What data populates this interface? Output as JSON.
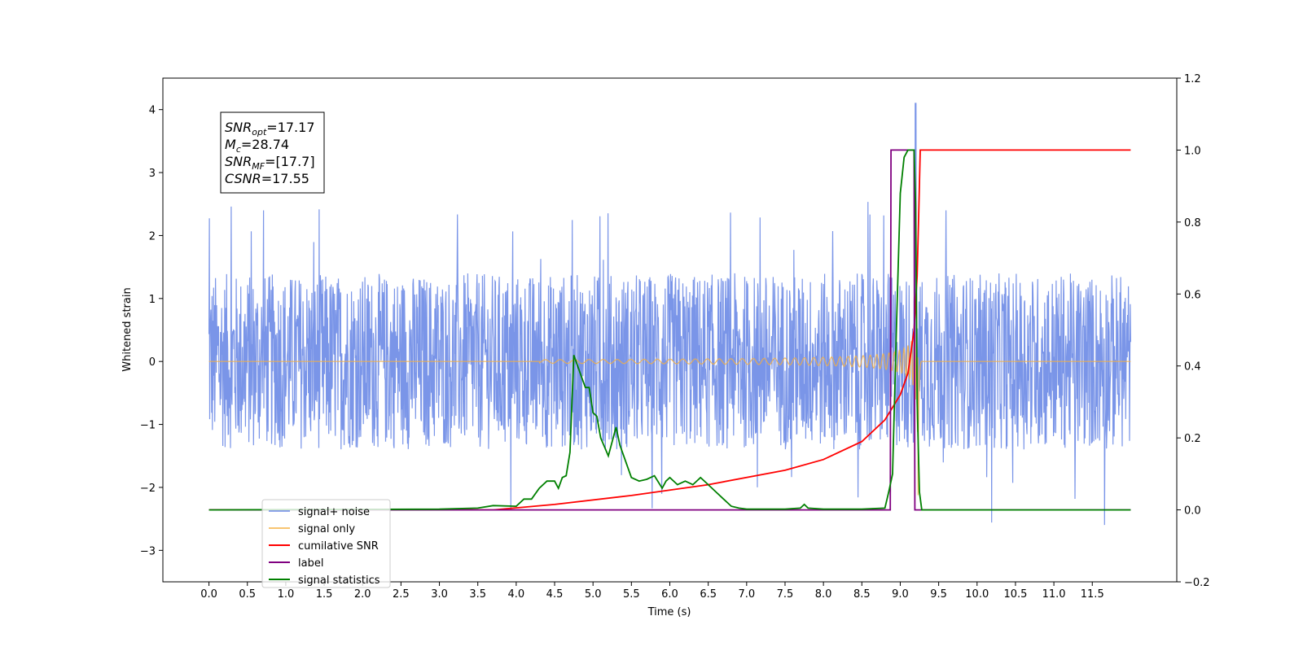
{
  "chart_data": {
    "type": "line",
    "xlabel": "Time (s)",
    "ylabel": "Whitened strain",
    "xlim": [
      -0.6,
      12.6
    ],
    "ylim": [
      -3.5,
      4.5
    ],
    "ylim_right": [
      -0.2,
      1.2
    ],
    "grid": false,
    "legend_position": "lower-left",
    "x_ticks": [
      "0.0",
      "0.5",
      "1.0",
      "1.5",
      "2.0",
      "2.5",
      "3.0",
      "3.5",
      "4.0",
      "4.5",
      "5.0",
      "5.5",
      "6.0",
      "6.5",
      "7.0",
      "7.5",
      "8.0",
      "8.5",
      "9.0",
      "9.5",
      "10.0",
      "10.5",
      "11.0",
      "11.5"
    ],
    "x_tick_values": [
      0,
      0.5,
      1,
      1.5,
      2,
      2.5,
      3,
      3.5,
      4,
      4.5,
      5,
      5.5,
      6,
      6.5,
      7,
      7.5,
      8,
      8.5,
      9,
      9.5,
      10,
      10.5,
      11,
      11.5
    ],
    "y_ticks_left": [
      "−3",
      "−2",
      "−1",
      "0",
      "1",
      "2",
      "3",
      "4"
    ],
    "y_tick_values_left": [
      -3,
      -2,
      -1,
      0,
      1,
      2,
      3,
      4
    ],
    "y_ticks_right": [
      "−0.2",
      "0.0",
      "0.2",
      "0.4",
      "0.6",
      "0.8",
      "1.0",
      "1.2"
    ],
    "y_tick_values_right": [
      -0.2,
      0,
      0.2,
      0.4,
      0.6,
      0.8,
      1.0,
      1.2
    ],
    "annotation": {
      "lines": [
        {
          "main": "SNR",
          "sub": "opt",
          "rest": "=17.17"
        },
        {
          "main": "M",
          "sub": "c",
          "rest": "=28.74"
        },
        {
          "main": "SNR",
          "sub": "MF",
          "rest": "=[17.7]"
        },
        {
          "main": "CSNR",
          "sub": "",
          "rest": "=17.55"
        }
      ]
    },
    "series": [
      {
        "name": "signal+ noise",
        "color": "#6b8ae6",
        "axis": "left",
        "x_range": [
          0,
          12
        ],
        "envelope_abs": 1.4,
        "peak_x": 9.2,
        "peak_y": 4.1
      },
      {
        "name": "signal only",
        "color": "#f5b042",
        "axis": "left",
        "x_range": [
          0,
          12
        ],
        "chirp_start": 4.3,
        "merger_x": 9.23,
        "merger_amp": 1.5
      },
      {
        "name": "cumilative SNR",
        "color": "#ff0000",
        "axis": "right",
        "x": [
          0,
          3.7,
          4.5,
          5.5,
          6.5,
          7.5,
          8.0,
          8.5,
          8.8,
          9.0,
          9.1,
          9.18,
          9.22,
          9.24,
          9.26,
          9.28,
          12
        ],
        "y": [
          0,
          0,
          0.015,
          0.04,
          0.07,
          0.11,
          0.14,
          0.19,
          0.25,
          0.32,
          0.38,
          0.5,
          0.65,
          0.82,
          1.0,
          1.0,
          1.0
        ]
      },
      {
        "name": "label",
        "color": "#800080",
        "axis": "right",
        "x": [
          0,
          8.87,
          8.88,
          9.18,
          9.19,
          12
        ],
        "y": [
          0,
          0,
          1,
          1,
          0,
          0
        ]
      },
      {
        "name": "signal statistics",
        "color": "#008000",
        "axis": "right",
        "x": [
          0,
          3.0,
          3.5,
          3.7,
          4.0,
          4.1,
          4.2,
          4.3,
          4.4,
          4.5,
          4.55,
          4.6,
          4.65,
          4.7,
          4.75,
          4.8,
          4.85,
          4.9,
          4.95,
          5.0,
          5.05,
          5.1,
          5.2,
          5.3,
          5.35,
          5.4,
          5.5,
          5.6,
          5.7,
          5.8,
          5.9,
          5.95,
          6.0,
          6.1,
          6.2,
          6.3,
          6.4,
          6.5,
          6.6,
          6.7,
          6.8,
          6.9,
          7.0,
          7.5,
          7.7,
          7.75,
          7.8,
          8.0,
          8.5,
          8.8,
          8.85,
          8.9,
          8.95,
          9.0,
          9.05,
          9.1,
          9.15,
          9.18,
          9.2,
          9.22,
          9.25,
          9.28,
          9.3,
          12
        ],
        "y": [
          0,
          0.002,
          0.005,
          0.012,
          0.01,
          0.03,
          0.03,
          0.06,
          0.08,
          0.08,
          0.06,
          0.09,
          0.095,
          0.16,
          0.43,
          0.4,
          0.37,
          0.34,
          0.34,
          0.27,
          0.26,
          0.2,
          0.15,
          0.23,
          0.18,
          0.15,
          0.09,
          0.08,
          0.085,
          0.095,
          0.06,
          0.08,
          0.09,
          0.07,
          0.08,
          0.07,
          0.09,
          0.07,
          0.05,
          0.03,
          0.01,
          0.005,
          0.002,
          0.002,
          0.005,
          0.015,
          0.005,
          0.002,
          0.002,
          0.005,
          0.05,
          0.1,
          0.5,
          0.88,
          0.98,
          1.0,
          1.0,
          1.0,
          0.85,
          0.3,
          0.05,
          0.0,
          0.0,
          0.0
        ]
      }
    ]
  },
  "colors": {
    "noise": "#6b8ae6",
    "signal": "#f5b042",
    "csnr": "#ff0000",
    "label": "#800080",
    "stats": "#008000"
  }
}
